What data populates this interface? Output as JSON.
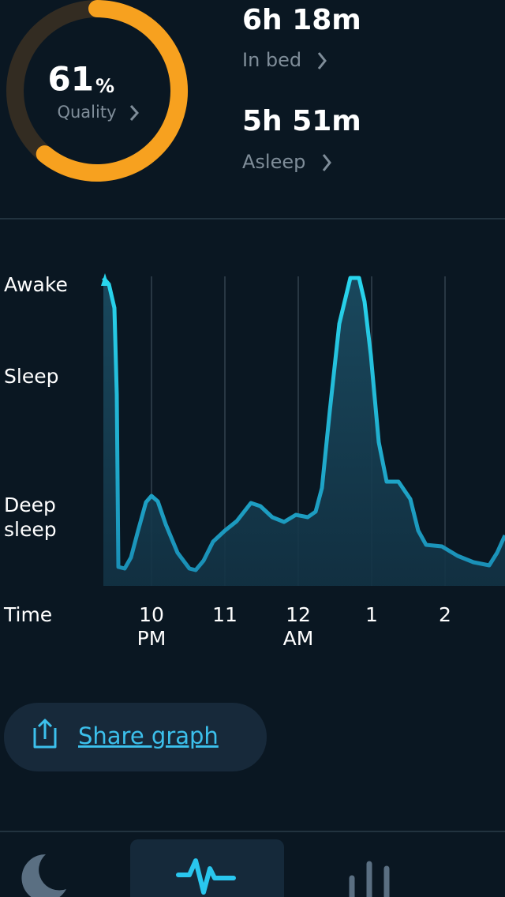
{
  "summary": {
    "quality": {
      "value": 61,
      "unit": "%",
      "label": "Quality"
    },
    "in_bed": {
      "value": "6h 18m",
      "label": "In bed"
    },
    "asleep": {
      "value": "5h 51m",
      "label": "Asleep"
    }
  },
  "graph": {
    "y_labels": [
      "Awake",
      "Sleep",
      "Deep",
      "sleep"
    ],
    "x_title": "Time",
    "x_labels": [
      [
        "10",
        "PM"
      ],
      [
        "11"
      ],
      [
        "12",
        "AM"
      ],
      [
        "1"
      ],
      [
        "2"
      ]
    ]
  },
  "share": {
    "label": "Share graph"
  }
}
